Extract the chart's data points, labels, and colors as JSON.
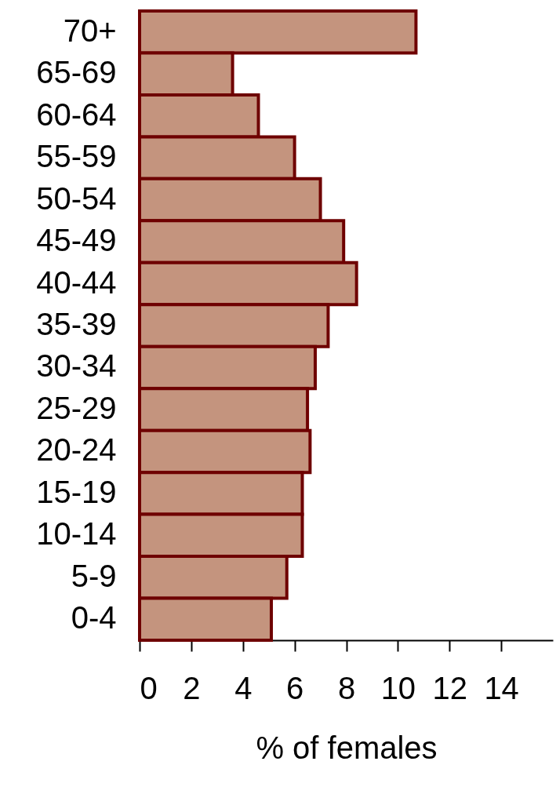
{
  "chart_data": {
    "type": "bar",
    "orientation": "horizontal",
    "xlabel": "% of females",
    "categories": [
      "70+",
      "65-69",
      "60-64",
      "55-59",
      "50-54",
      "45-49",
      "40-44",
      "35-39",
      "30-34",
      "25-29",
      "20-24",
      "15-19",
      "10-14",
      "5-9",
      "0-4"
    ],
    "values": [
      10.7,
      3.6,
      4.6,
      6.0,
      7.0,
      7.9,
      8.4,
      7.3,
      6.8,
      6.5,
      6.6,
      6.3,
      6.3,
      5.7,
      5.1
    ],
    "color": "#c4947e",
    "xlim": [
      0,
      16
    ],
    "xticks": [
      0,
      2,
      4,
      6,
      8,
      10,
      12,
      14
    ],
    "grid": false
  }
}
